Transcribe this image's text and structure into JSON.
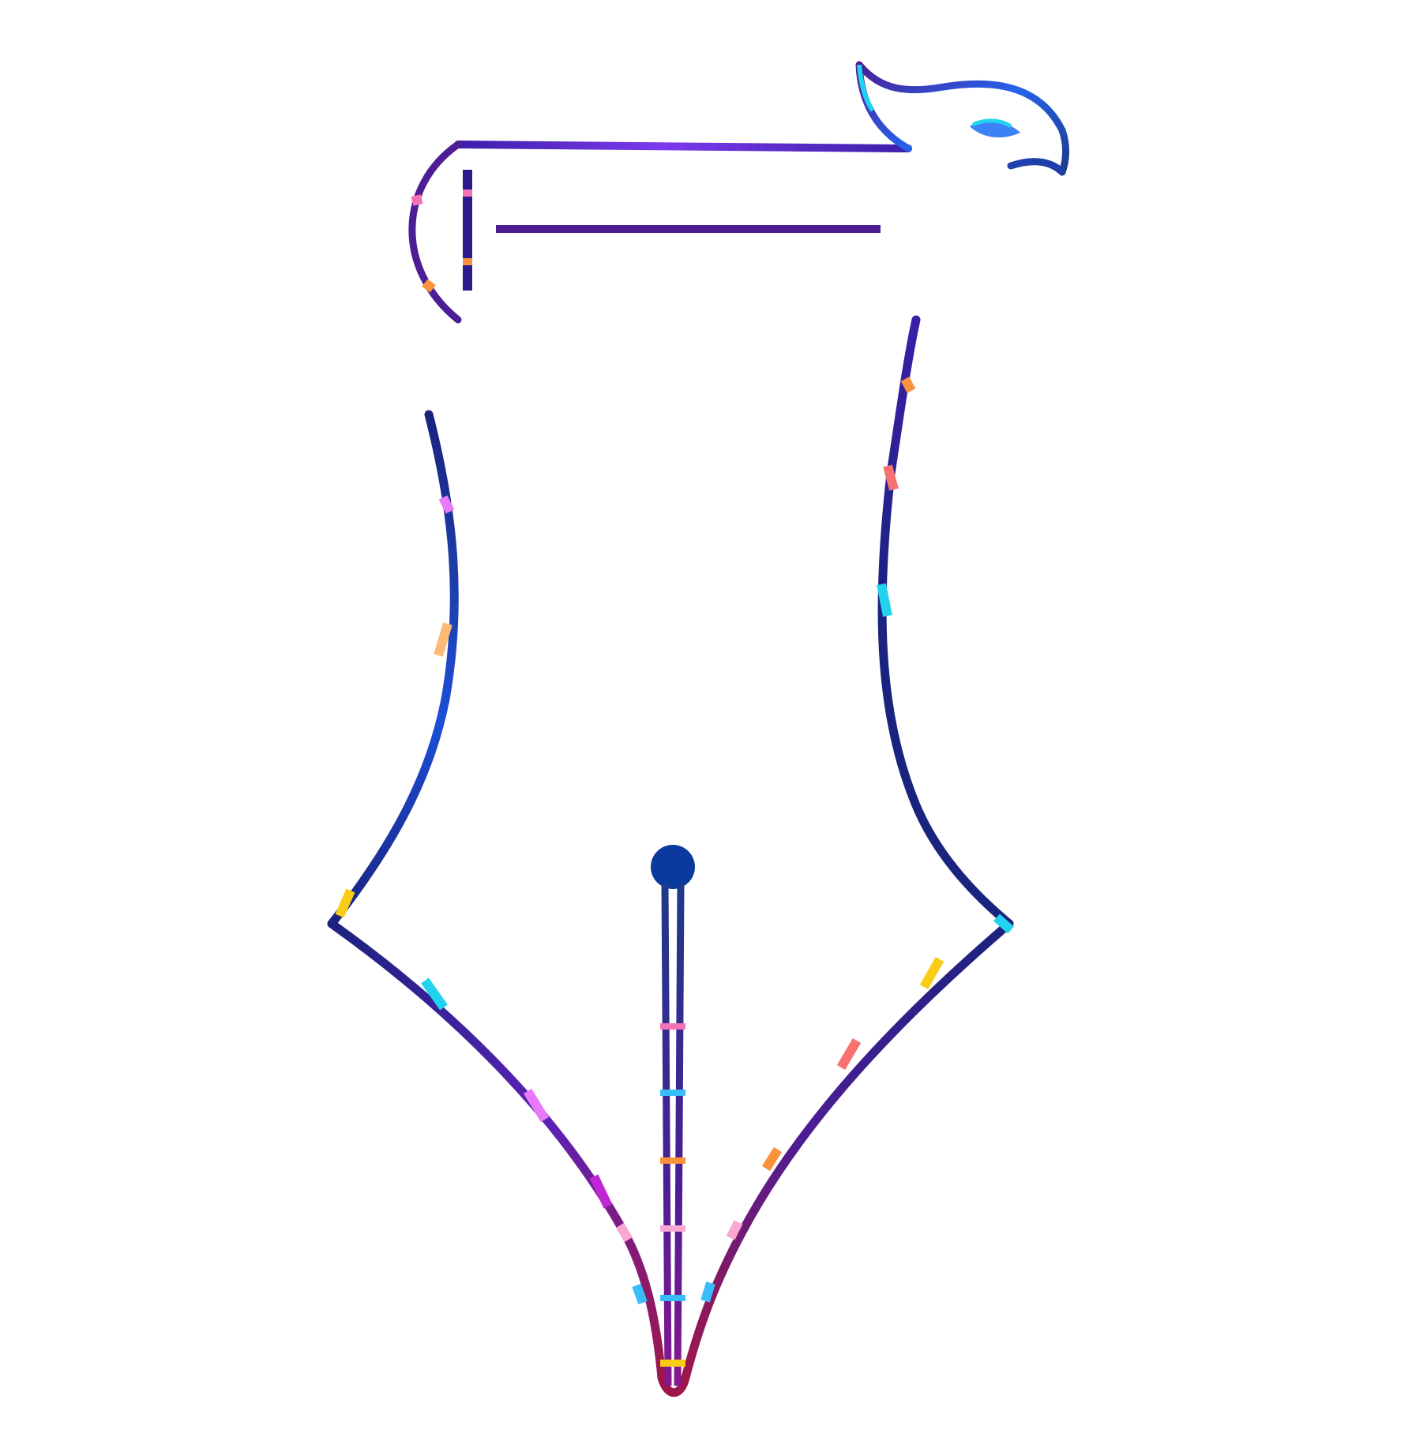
{
  "logo": {
    "subject": "fountain-pen-nib-with-scroll-and-eagle-head",
    "colors": {
      "primary": "#2a1a8c",
      "navy": "#1a237e",
      "purple": "#5b21b6",
      "violet": "#7c3aed",
      "magenta": "#c026d3",
      "pink": "#f472b6",
      "cyan": "#22d3ee",
      "sky": "#38bdf8",
      "orange": "#fb923c",
      "coral": "#f87171",
      "yellow": "#facc15",
      "dot": "#0b3a9e",
      "background": "#ffffff"
    }
  }
}
